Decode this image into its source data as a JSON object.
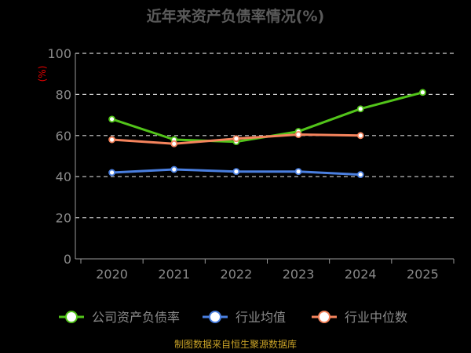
{
  "chart_data": {
    "type": "line",
    "title": "近年来资产负债率情况(%)",
    "unit_label": "(%)",
    "categories": [
      "2020",
      "2021",
      "2022",
      "2023",
      "2024",
      "2025"
    ],
    "ylim": [
      0,
      100
    ],
    "yticks": [
      0,
      20,
      40,
      60,
      80,
      100
    ],
    "grid": true,
    "legend_position": "bottom",
    "series": [
      {
        "name": "公司资产负债率",
        "color": "#52c41a",
        "values": [
          68,
          58,
          57,
          62,
          73,
          81
        ]
      },
      {
        "name": "行业均值",
        "color": "#4a7fe0",
        "values": [
          42,
          43.5,
          42.5,
          42.5,
          41,
          null
        ]
      },
      {
        "name": "行业中位数",
        "color": "#f5845d",
        "values": [
          58,
          56,
          58.5,
          60.5,
          60,
          null
        ]
      }
    ],
    "source": "制图数据来自恒生聚源数据库"
  }
}
